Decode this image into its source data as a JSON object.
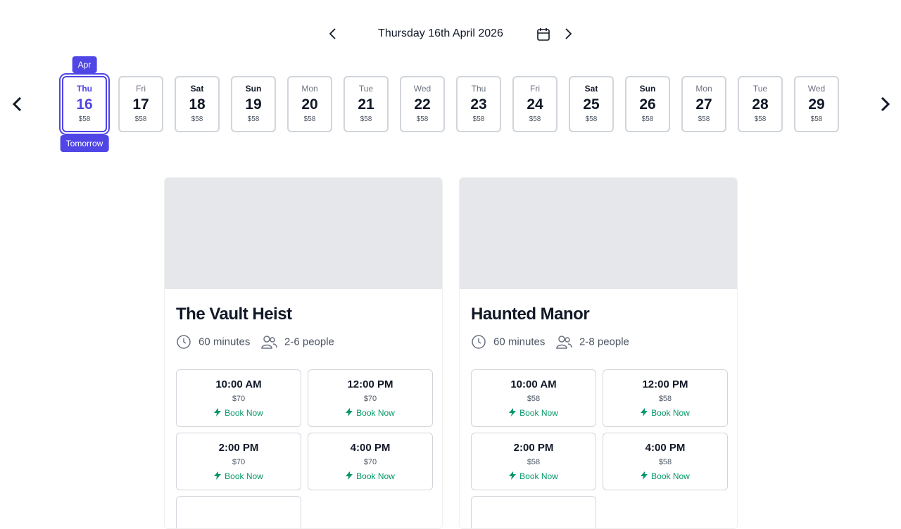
{
  "header": {
    "date": "Thursday 16th April 2026"
  },
  "strip": {
    "month_badge": "Apr",
    "tomorrow_badge": "Tomorrow",
    "selected": 0,
    "days": [
      {
        "weekday": "Thu",
        "day": 16,
        "price": "$58",
        "weekend": false
      },
      {
        "weekday": "Fri",
        "day": 17,
        "price": "$58",
        "weekend": false
      },
      {
        "weekday": "Sat",
        "day": 18,
        "price": "$58",
        "weekend": true
      },
      {
        "weekday": "Sun",
        "day": 19,
        "price": "$58",
        "weekend": true
      },
      {
        "weekday": "Mon",
        "day": 20,
        "price": "$58",
        "weekend": false
      },
      {
        "weekday": "Tue",
        "day": 21,
        "price": "$58",
        "weekend": false
      },
      {
        "weekday": "Wed",
        "day": 22,
        "price": "$58",
        "weekend": false
      },
      {
        "weekday": "Thu",
        "day": 23,
        "price": "$58",
        "weekend": false
      },
      {
        "weekday": "Fri",
        "day": 24,
        "price": "$58",
        "weekend": false
      },
      {
        "weekday": "Sat",
        "day": 25,
        "price": "$58",
        "weekend": true
      },
      {
        "weekday": "Sun",
        "day": 26,
        "price": "$58",
        "weekend": true
      },
      {
        "weekday": "Mon",
        "day": 27,
        "price": "$58",
        "weekend": false
      },
      {
        "weekday": "Tue",
        "day": 28,
        "price": "$58",
        "weekend": false
      },
      {
        "weekday": "Wed",
        "day": 29,
        "price": "$58",
        "weekend": false
      }
    ]
  },
  "rooms": [
    {
      "title": "The Vault Heist",
      "duration": "60 minutes",
      "people": "2-6 people",
      "slots": [
        {
          "time": "10:00 AM",
          "price": "$70",
          "action": "Book Now"
        },
        {
          "time": "12:00 PM",
          "price": "$70",
          "action": "Book Now"
        },
        {
          "time": "2:00 PM",
          "price": "$70",
          "action": "Book Now"
        },
        {
          "time": "4:00 PM",
          "price": "$70",
          "action": "Book Now"
        }
      ]
    },
    {
      "title": "Haunted Manor",
      "duration": "60 minutes",
      "people": "2-8 people",
      "slots": [
        {
          "time": "10:00 AM",
          "price": "$58",
          "action": "Book Now"
        },
        {
          "time": "12:00 PM",
          "price": "$58",
          "action": "Book Now"
        },
        {
          "time": "2:00 PM",
          "price": "$58",
          "action": "Book Now"
        },
        {
          "time": "4:00 PM",
          "price": "$58",
          "action": "Book Now"
        }
      ]
    }
  ]
}
